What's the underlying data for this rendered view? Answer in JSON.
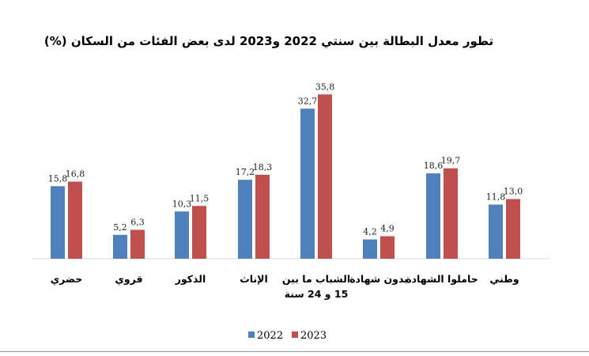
{
  "chart_data": {
    "type": "bar",
    "title": "تطور معدل البطالة بين سنتي 2022 و2023 لدى بعض الفئات من السكان (%)",
    "categories": [
      [
        "حضري"
      ],
      [
        "قروي"
      ],
      [
        "الذكور"
      ],
      [
        "الإناث"
      ],
      [
        "الشباب ما بين",
        "15 و 24 سنة"
      ],
      [
        "بدون شهادة"
      ],
      [
        "حاملوا الشهادة"
      ],
      [
        "وطني"
      ]
    ],
    "series": [
      {
        "name": "2022",
        "color": "#4f81bd",
        "values": [
          15.8,
          5.2,
          10.3,
          17.2,
          32.7,
          4.2,
          18.6,
          11.8
        ],
        "labels": [
          "15,8",
          "5,2",
          "10,3",
          "17,2",
          "32,7",
          "4,2",
          "18,6",
          "11,8"
        ]
      },
      {
        "name": "2023",
        "color": "#c0504d",
        "values": [
          16.8,
          6.3,
          11.5,
          18.3,
          35.8,
          4.9,
          19.7,
          13.0
        ],
        "labels": [
          "16,8",
          "6,3",
          "11,5",
          "18,3",
          "35,8",
          "4,9",
          "19,7",
          "13,0"
        ]
      }
    ],
    "ylim": [
      0,
      40
    ],
    "grid": false,
    "legend": "bottom-center"
  }
}
